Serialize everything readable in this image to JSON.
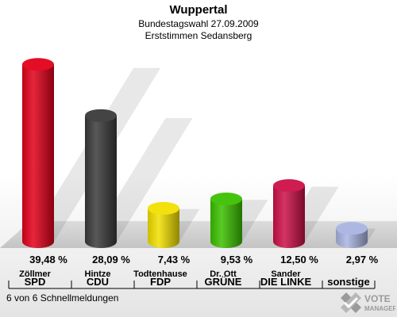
{
  "header": {
    "title": "Wuppertal",
    "subtitle1": "Bundestagswahl 27.09.2009",
    "subtitle2": "Erststimmen Sedansberg"
  },
  "footer": {
    "text": "6 von 6 Schnellmeldungen"
  },
  "logo": {
    "line1": "VOTE",
    "line2": "MANAGER"
  },
  "chart_data": {
    "type": "bar",
    "style": "3d-cylinder",
    "ylim": [
      0,
      42
    ],
    "categories": [
      {
        "candidate": "Zöllmer",
        "party": "SPD",
        "value": 39.48,
        "label": "39,48 %",
        "color": "#e2001a"
      },
      {
        "candidate": "Hintze",
        "party": "CDU",
        "value": 28.09,
        "label": "28,09 %",
        "color": "#3a3a3a"
      },
      {
        "candidate": "Todtenhause",
        "party": "FDP",
        "value": 7.43,
        "label": "7,43 %",
        "color": "#f2df00"
      },
      {
        "candidate": "Dr. Ott",
        "party": "GRÜNE",
        "value": 9.53,
        "label": "9,53 %",
        "color": "#3cc000"
      },
      {
        "candidate": "Sander",
        "party": "DIE LINKE",
        "value": 12.5,
        "label": "12,50 %",
        "color": "#cc1048"
      },
      {
        "candidate": "",
        "party": "sonstige",
        "value": 2.97,
        "label": "2,97 %",
        "color": "#a9b4e0"
      }
    ]
  }
}
